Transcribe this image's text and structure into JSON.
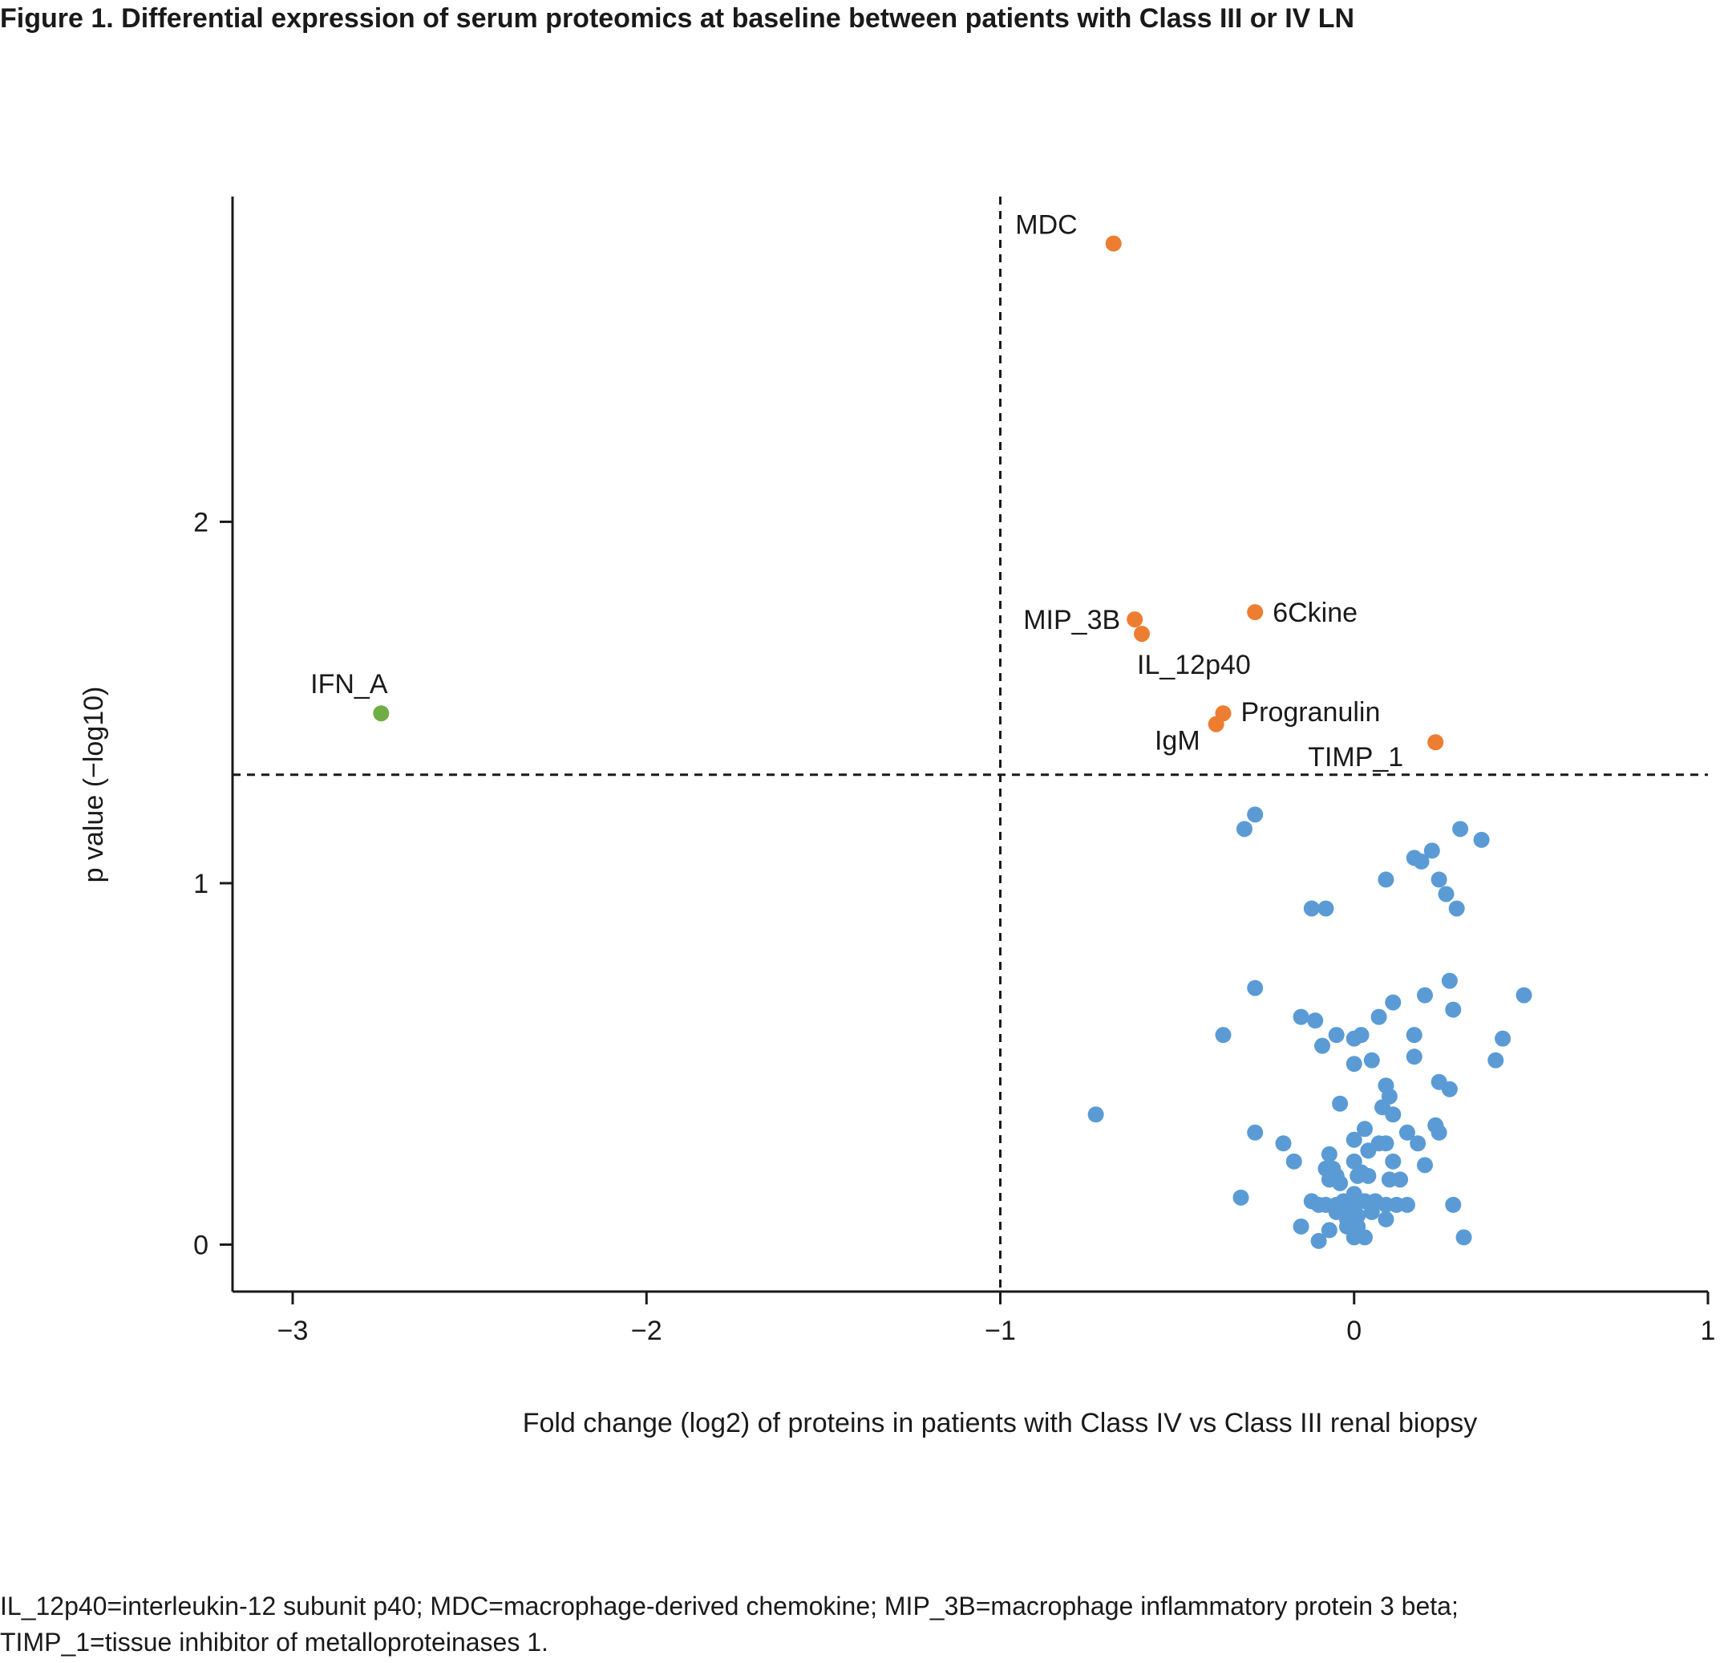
{
  "title": "Figure 1. Differential expression of serum proteomics at baseline between patients with Class III or IV LN",
  "footnote": {
    "line1": "IL_12p40=interleukin-12 subunit p40; MDC=macrophage-derived chemokine; MIP_3B=macrophage inflammatory protein 3 beta;",
    "line2": "TIMP_1=tissue inhibitor of metalloproteinases 1."
  },
  "colors": {
    "up": "#ed7d31",
    "down": "#70ad47",
    "nonsignificant": "#5b9bd5",
    "axis": "#1a1a1a"
  },
  "chart_data": {
    "type": "scatter",
    "title": "",
    "xlabel": "Fold change (log2) of proteins in patients with Class IV vs Class III renal biopsy",
    "ylabel": "p value (−log10)",
    "xlim": [
      -3.17,
      1.0
    ],
    "ylim": [
      -0.13,
      2.9
    ],
    "xticks": [
      -3,
      -2,
      -1,
      0,
      1
    ],
    "xtick_labels": [
      "−3",
      "−2",
      "−1",
      "0",
      "1"
    ],
    "yticks": [
      0,
      1,
      2
    ],
    "ytick_labels": [
      "0",
      "1",
      "2"
    ],
    "threshold_x": -1,
    "threshold_y": 1.3,
    "labeled_points": [
      {
        "label": "MDC",
        "x": -0.68,
        "y": 2.77,
        "group": "up"
      },
      {
        "label": "MIP_3B",
        "x": -0.62,
        "y": 1.73,
        "group": "up"
      },
      {
        "label": "IL_12p40",
        "x": -0.6,
        "y": 1.69,
        "group": "up"
      },
      {
        "label": "6Ckine",
        "x": -0.28,
        "y": 1.75,
        "group": "up"
      },
      {
        "label": "Progranulin",
        "x": -0.37,
        "y": 1.47,
        "group": "up"
      },
      {
        "label": "IgM",
        "x": -0.39,
        "y": 1.44,
        "group": "up"
      },
      {
        "label": "TIMP_1",
        "x": 0.23,
        "y": 1.39,
        "group": "up"
      },
      {
        "label": "IFN_A",
        "x": -2.75,
        "y": 1.47,
        "group": "down"
      }
    ],
    "points": [
      {
        "x": -0.28,
        "y": 1.19
      },
      {
        "x": -0.31,
        "y": 1.15
      },
      {
        "x": 0.3,
        "y": 1.15
      },
      {
        "x": 0.36,
        "y": 1.12
      },
      {
        "x": 0.22,
        "y": 1.09
      },
      {
        "x": 0.17,
        "y": 1.07
      },
      {
        "x": 0.19,
        "y": 1.06
      },
      {
        "x": 0.24,
        "y": 1.01
      },
      {
        "x": 0.09,
        "y": 1.01
      },
      {
        "x": 0.26,
        "y": 0.97
      },
      {
        "x": -0.08,
        "y": 0.93
      },
      {
        "x": -0.12,
        "y": 0.93
      },
      {
        "x": 0.29,
        "y": 0.93
      },
      {
        "x": -0.28,
        "y": 0.71
      },
      {
        "x": 0.27,
        "y": 0.73
      },
      {
        "x": 0.48,
        "y": 0.69
      },
      {
        "x": 0.2,
        "y": 0.69
      },
      {
        "x": 0.11,
        "y": 0.67
      },
      {
        "x": 0.28,
        "y": 0.65
      },
      {
        "x": 0.07,
        "y": 0.63
      },
      {
        "x": -0.15,
        "y": 0.63
      },
      {
        "x": -0.11,
        "y": 0.62
      },
      {
        "x": -0.37,
        "y": 0.58
      },
      {
        "x": -0.05,
        "y": 0.58
      },
      {
        "x": 0.0,
        "y": 0.57
      },
      {
        "x": 0.02,
        "y": 0.58
      },
      {
        "x": 0.17,
        "y": 0.58
      },
      {
        "x": 0.42,
        "y": 0.57
      },
      {
        "x": -0.09,
        "y": 0.55
      },
      {
        "x": 0.17,
        "y": 0.52
      },
      {
        "x": 0.05,
        "y": 0.51
      },
      {
        "x": 0.0,
        "y": 0.5
      },
      {
        "x": 0.4,
        "y": 0.51
      },
      {
        "x": 0.24,
        "y": 0.45
      },
      {
        "x": 0.09,
        "y": 0.44
      },
      {
        "x": 0.27,
        "y": 0.43
      },
      {
        "x": 0.1,
        "y": 0.41
      },
      {
        "x": -0.04,
        "y": 0.39
      },
      {
        "x": 0.08,
        "y": 0.38
      },
      {
        "x": 0.11,
        "y": 0.36
      },
      {
        "x": -0.73,
        "y": 0.36
      },
      {
        "x": 0.03,
        "y": 0.32
      },
      {
        "x": 0.23,
        "y": 0.33
      },
      {
        "x": -0.28,
        "y": 0.31
      },
      {
        "x": 0.15,
        "y": 0.31
      },
      {
        "x": 0.24,
        "y": 0.31
      },
      {
        "x": 0.0,
        "y": 0.29
      },
      {
        "x": 0.07,
        "y": 0.28
      },
      {
        "x": 0.09,
        "y": 0.28
      },
      {
        "x": 0.18,
        "y": 0.28
      },
      {
        "x": -0.2,
        "y": 0.28
      },
      {
        "x": 0.04,
        "y": 0.26
      },
      {
        "x": -0.07,
        "y": 0.25
      },
      {
        "x": 0.0,
        "y": 0.23
      },
      {
        "x": 0.11,
        "y": 0.23
      },
      {
        "x": 0.2,
        "y": 0.22
      },
      {
        "x": -0.17,
        "y": 0.23
      },
      {
        "x": -0.08,
        "y": 0.21
      },
      {
        "x": -0.06,
        "y": 0.21
      },
      {
        "x": 0.02,
        "y": 0.2
      },
      {
        "x": -0.05,
        "y": 0.19
      },
      {
        "x": 0.01,
        "y": 0.19
      },
      {
        "x": 0.04,
        "y": 0.19
      },
      {
        "x": -0.07,
        "y": 0.18
      },
      {
        "x": 0.1,
        "y": 0.18
      },
      {
        "x": 0.13,
        "y": 0.18
      },
      {
        "x": -0.04,
        "y": 0.17
      },
      {
        "x": 0.0,
        "y": 0.14
      },
      {
        "x": -0.32,
        "y": 0.13
      },
      {
        "x": -0.12,
        "y": 0.12
      },
      {
        "x": -0.1,
        "y": 0.11
      },
      {
        "x": -0.08,
        "y": 0.11
      },
      {
        "x": -0.05,
        "y": 0.11
      },
      {
        "x": -0.03,
        "y": 0.12
      },
      {
        "x": 0.0,
        "y": 0.11
      },
      {
        "x": 0.03,
        "y": 0.12
      },
      {
        "x": 0.06,
        "y": 0.12
      },
      {
        "x": 0.09,
        "y": 0.11
      },
      {
        "x": 0.12,
        "y": 0.11
      },
      {
        "x": 0.15,
        "y": 0.11
      },
      {
        "x": 0.28,
        "y": 0.11
      },
      {
        "x": -0.05,
        "y": 0.09
      },
      {
        "x": -0.02,
        "y": 0.09
      },
      {
        "x": 0.01,
        "y": 0.08
      },
      {
        "x": 0.05,
        "y": 0.09
      },
      {
        "x": -0.02,
        "y": 0.07
      },
      {
        "x": 0.0,
        "y": 0.06
      },
      {
        "x": 0.09,
        "y": 0.07
      },
      {
        "x": -0.02,
        "y": 0.05
      },
      {
        "x": 0.01,
        "y": 0.05
      },
      {
        "x": -0.15,
        "y": 0.05
      },
      {
        "x": -0.07,
        "y": 0.04
      },
      {
        "x": -0.1,
        "y": 0.01
      },
      {
        "x": 0.0,
        "y": 0.02
      },
      {
        "x": 0.03,
        "y": 0.02
      },
      {
        "x": 0.31,
        "y": 0.02
      }
    ]
  }
}
